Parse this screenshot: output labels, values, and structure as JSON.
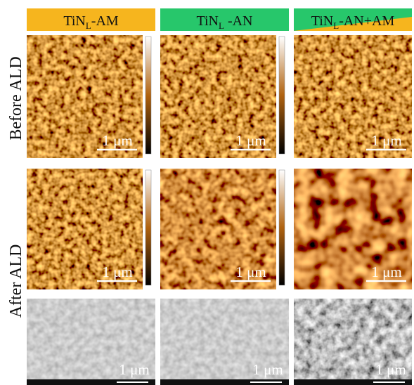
{
  "header": {
    "columns": [
      {
        "name": "TiN",
        "subscript": "L",
        "suffix": "-AM"
      },
      {
        "name": "TiN",
        "subscript": "L",
        "suffix": " -AN"
      },
      {
        "name": "TiN",
        "subscript": "L",
        "suffix": "-AN+AM"
      }
    ]
  },
  "rows": [
    {
      "label": "Before ALD"
    },
    {
      "label": "After ALD"
    }
  ],
  "panels": [
    [
      {
        "scale_label": "1 μm"
      },
      {
        "scale_label": "1 μm"
      },
      {
        "scale_label": "1 μm"
      }
    ],
    [
      {
        "scale_label": "1 μm"
      },
      {
        "scale_label": "1 μm"
      },
      {
        "scale_label": "1 μm"
      }
    ],
    [
      {
        "scale_label": "1 μm"
      },
      {
        "scale_label": "1 μm"
      },
      {
        "scale_label": "1 μm"
      }
    ]
  ]
}
